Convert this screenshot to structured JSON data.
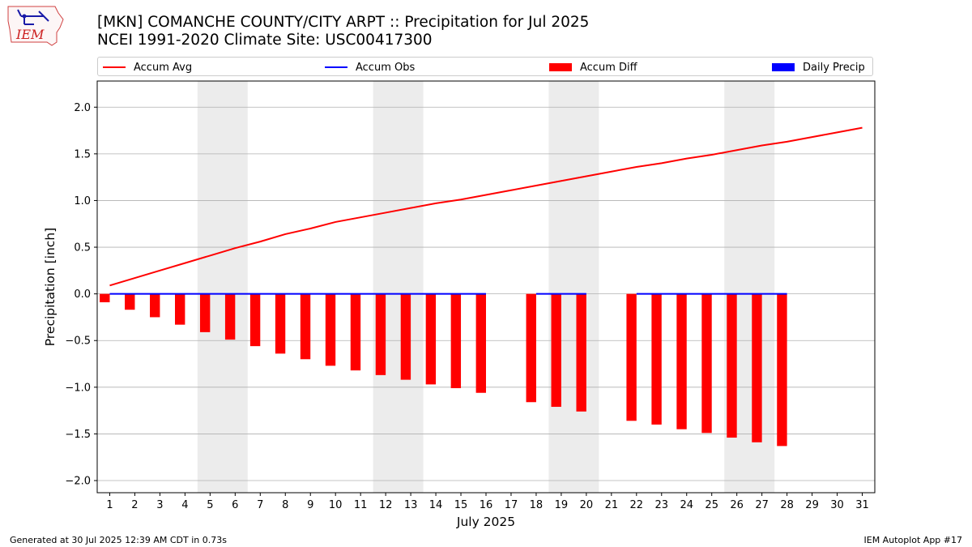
{
  "header": {
    "title_line1": "[MKN] COMANCHE COUNTY/CITY ARPT :: Precipitation for Jul 2025",
    "title_line2": "NCEI 1991-2020 Climate Site: USC00417300",
    "logo_text": "IEM"
  },
  "legend": {
    "items": [
      {
        "label": "Accum Avg",
        "kind": "line",
        "color": "#ff0000"
      },
      {
        "label": "Accum Obs",
        "kind": "line",
        "color": "#0000ff"
      },
      {
        "label": "Accum Diff",
        "kind": "box",
        "color": "#ff0000"
      },
      {
        "label": "Daily Precip",
        "kind": "box",
        "color": "#0000ff"
      }
    ]
  },
  "footer": {
    "left": "Generated at 30 Jul 2025 12:39 AM CDT in 0.73s",
    "right": "IEM Autoplot App #17"
  },
  "chart_data": {
    "type": "bar",
    "xlabel": "July 2025",
    "ylabel": "Precipitation [inch]",
    "xlim": [
      0.5,
      31.5
    ],
    "ylim": [
      -2.13,
      2.28
    ],
    "yticks": [
      -2.0,
      -1.5,
      -1.0,
      -0.5,
      0.0,
      0.5,
      1.0,
      1.5,
      2.0
    ],
    "ytick_labels": [
      "−2.0",
      "−1.5",
      "−1.0",
      "−0.5",
      "0.0",
      "0.5",
      "1.0",
      "1.5",
      "2.0"
    ],
    "categories": [
      "1",
      "2",
      "3",
      "4",
      "5",
      "6",
      "7",
      "8",
      "9",
      "10",
      "11",
      "12",
      "13",
      "14",
      "15",
      "16",
      "17",
      "18",
      "19",
      "20",
      "21",
      "22",
      "23",
      "24",
      "25",
      "26",
      "27",
      "28",
      "29",
      "30",
      "31"
    ],
    "weekend_shading": [
      [
        4.5,
        6.5
      ],
      [
        11.5,
        13.5
      ],
      [
        18.5,
        20.5
      ],
      [
        25.5,
        27.5
      ]
    ],
    "grid": true,
    "legend_position": "top",
    "series": [
      {
        "name": "Accum Avg",
        "kind": "line",
        "color": "#ff0000",
        "x": [
          1,
          2,
          3,
          4,
          5,
          6,
          7,
          8,
          9,
          10,
          11,
          12,
          13,
          14,
          15,
          16,
          17,
          18,
          19,
          20,
          21,
          22,
          23,
          24,
          25,
          26,
          27,
          28,
          29,
          30,
          31
        ],
        "values": [
          0.09,
          0.17,
          0.25,
          0.33,
          0.41,
          0.49,
          0.56,
          0.64,
          0.7,
          0.77,
          0.82,
          0.87,
          0.92,
          0.97,
          1.01,
          1.06,
          1.11,
          1.16,
          1.21,
          1.26,
          1.31,
          1.36,
          1.4,
          1.45,
          1.49,
          1.54,
          1.59,
          1.63,
          1.68,
          1.73,
          1.78
        ]
      },
      {
        "name": "Accum Obs",
        "kind": "line",
        "color": "#0000ff",
        "segments": [
          {
            "x": [
              1,
              2,
              3,
              4,
              5,
              6,
              7,
              8,
              9,
              10,
              11,
              12,
              13,
              14,
              15,
              16
            ],
            "values": [
              0,
              0,
              0,
              0,
              0,
              0,
              0,
              0,
              0,
              0,
              0,
              0,
              0,
              0,
              0,
              0
            ]
          },
          {
            "x": [
              18,
              19,
              20
            ],
            "values": [
              0,
              0,
              0
            ]
          },
          {
            "x": [
              22,
              23,
              24,
              25,
              26,
              27,
              28
            ],
            "values": [
              0,
              0,
              0,
              0,
              0,
              0,
              0
            ]
          }
        ]
      },
      {
        "name": "Accum Diff",
        "kind": "bar",
        "color": "#ff0000",
        "x": [
          1,
          2,
          3,
          4,
          5,
          6,
          7,
          8,
          9,
          10,
          11,
          12,
          13,
          14,
          15,
          16,
          18,
          19,
          20,
          22,
          23,
          24,
          25,
          26,
          27,
          28
        ],
        "values": [
          -0.09,
          -0.17,
          -0.25,
          -0.33,
          -0.41,
          -0.49,
          -0.56,
          -0.64,
          -0.7,
          -0.77,
          -0.82,
          -0.87,
          -0.92,
          -0.97,
          -1.01,
          -1.06,
          -1.16,
          -1.21,
          -1.26,
          -1.36,
          -1.4,
          -1.45,
          -1.49,
          -1.54,
          -1.59,
          -1.63
        ]
      },
      {
        "name": "Daily Precip",
        "kind": "bar",
        "color": "#0000ff",
        "x": [
          1,
          2,
          3,
          4,
          5,
          6,
          7,
          8,
          9,
          10,
          11,
          12,
          13,
          14,
          15,
          16,
          18,
          19,
          20,
          22,
          23,
          24,
          25,
          26,
          27,
          28
        ],
        "values": [
          0,
          0,
          0,
          0,
          0,
          0,
          0,
          0,
          0,
          0,
          0,
          0,
          0,
          0,
          0,
          0,
          0,
          0,
          0,
          0,
          0,
          0,
          0,
          0,
          0,
          0
        ]
      }
    ]
  }
}
